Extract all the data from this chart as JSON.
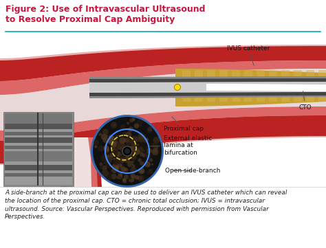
{
  "title_line1": "Figure 2: Use of Intravascular Ultrasound",
  "title_line2": "to Resolve Proximal Cap Ambiguity",
  "title_color": "#c8163c",
  "title_fontsize": 9.0,
  "caption": "A side-branch at the proximal cap can be used to deliver an IVUS catheter which can reveal\nthe location of the proximal cap. CTO = chronic total occlusion; IVUS = intravascular\nultrasound. Source: Vascular Perspectives. Reproduced with permission from Vascular\nPerspectives.",
  "caption_fontsize": 6.4,
  "caption_color": "#222222",
  "bg_color": "#ffffff",
  "separator_color": "#00aaaa",
  "label_ivus": "IVUS catheter",
  "label_cto": "CTO",
  "label_proximal": "Proximal cap",
  "label_external": "External elastic\nlamina at\nbifurcation",
  "label_open": "Open side-branch",
  "label_fontsize": 6.5,
  "label_color": "#111111",
  "illus_bg": "#ffffff"
}
